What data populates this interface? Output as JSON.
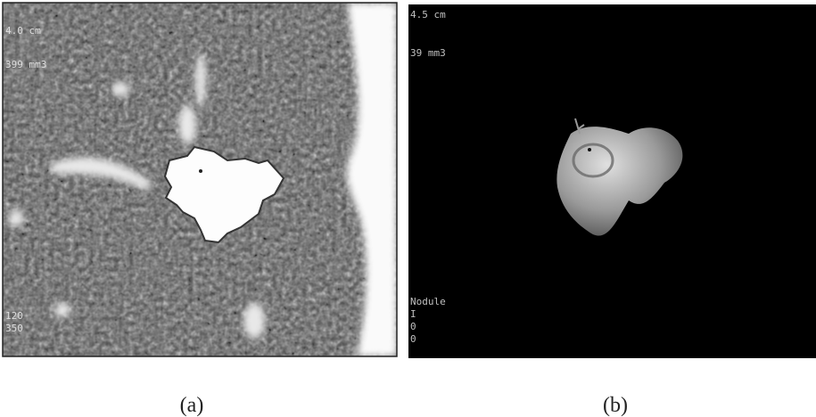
{
  "panels": [
    {
      "overlay": [
        "4.0 cm",
        "399 mm3",
        "120",
        "350"
      ],
      "caption": "(a)"
    },
    {
      "overlay": [
        "4.5 cm",
        "39 mm3",
        "Nodule",
        "I",
        "0",
        "0"
      ],
      "caption": "(b)"
    }
  ]
}
